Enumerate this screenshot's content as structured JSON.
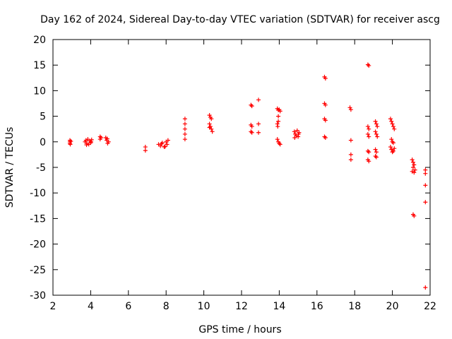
{
  "chart_data": {
    "type": "scatter",
    "title": "Day 162 of 2024, Sidereal Day-to-day VTEC variation (SDTVAR) for receiver ascg",
    "xlabel": "GPS time / hours",
    "ylabel": "SDTVAR / TECUs",
    "xlim": [
      2,
      22
    ],
    "ylim": [
      -30,
      20
    ],
    "xticks": [
      "2",
      "4",
      "6",
      "8",
      "10",
      "12",
      "14",
      "16",
      "18",
      "20",
      "22"
    ],
    "yticks": [
      "20",
      "15",
      "10",
      "5",
      "0",
      "-5",
      "-10",
      "-15",
      "-20",
      "-25",
      "-30"
    ],
    "marker": "+",
    "color": "#ff0000",
    "points": [
      [
        2.9,
        0.3
      ],
      [
        2.9,
        0.0
      ],
      [
        2.9,
        -0.3
      ],
      [
        2.95,
        0.1
      ],
      [
        2.92,
        -0.5
      ],
      [
        3.7,
        0.0
      ],
      [
        3.75,
        0.3
      ],
      [
        3.8,
        -0.3
      ],
      [
        3.85,
        0.5
      ],
      [
        3.9,
        -0.5
      ],
      [
        3.95,
        0.2
      ],
      [
        4.0,
        -0.2
      ],
      [
        4.05,
        0.4
      ],
      [
        3.78,
        -0.6
      ],
      [
        4.02,
        0.0
      ],
      [
        4.5,
        1.0
      ],
      [
        4.5,
        0.5
      ],
      [
        4.55,
        0.8
      ],
      [
        4.8,
        0.8
      ],
      [
        4.85,
        0.3
      ],
      [
        4.9,
        -0.3
      ],
      [
        4.95,
        0.0
      ],
      [
        4.88,
        0.6
      ],
      [
        6.9,
        -1.0
      ],
      [
        6.9,
        -1.7
      ],
      [
        7.6,
        -0.5
      ],
      [
        7.7,
        -0.8
      ],
      [
        7.8,
        -0.2
      ],
      [
        7.9,
        -1.0
      ],
      [
        8.0,
        0.0
      ],
      [
        8.05,
        -0.5
      ],
      [
        8.1,
        0.3
      ],
      [
        7.75,
        -0.4
      ],
      [
        7.95,
        -0.9
      ],
      [
        9.0,
        4.5
      ],
      [
        9.0,
        3.5
      ],
      [
        9.0,
        2.5
      ],
      [
        9.0,
        1.5
      ],
      [
        9.0,
        0.5
      ],
      [
        10.3,
        5.2
      ],
      [
        10.35,
        4.8
      ],
      [
        10.3,
        3.5
      ],
      [
        10.35,
        3.0
      ],
      [
        10.4,
        2.5
      ],
      [
        10.45,
        2.0
      ],
      [
        10.3,
        2.8
      ],
      [
        10.4,
        4.5
      ],
      [
        12.5,
        7.2
      ],
      [
        12.55,
        7.0
      ],
      [
        12.5,
        3.3
      ],
      [
        12.55,
        3.0
      ],
      [
        12.5,
        2.0
      ],
      [
        12.55,
        1.8
      ],
      [
        12.9,
        8.2
      ],
      [
        12.9,
        3.5
      ],
      [
        12.9,
        1.8
      ],
      [
        13.9,
        6.5
      ],
      [
        13.95,
        6.2
      ],
      [
        14.0,
        6.3
      ],
      [
        14.05,
        6.0
      ],
      [
        13.95,
        5.0
      ],
      [
        13.95,
        4.0
      ],
      [
        13.9,
        3.5
      ],
      [
        13.9,
        0.5
      ],
      [
        13.95,
        0.0
      ],
      [
        14.0,
        -0.3
      ],
      [
        14.05,
        -0.5
      ],
      [
        13.92,
        3.0
      ],
      [
        14.8,
        2.0
      ],
      [
        14.85,
        1.5
      ],
      [
        14.9,
        1.2
      ],
      [
        14.95,
        2.2
      ],
      [
        15.0,
        1.0
      ],
      [
        15.05,
        1.8
      ],
      [
        14.82,
        0.8
      ],
      [
        15.02,
        1.5
      ],
      [
        16.4,
        12.7
      ],
      [
        16.45,
        12.4
      ],
      [
        16.4,
        7.5
      ],
      [
        16.45,
        7.2
      ],
      [
        16.4,
        4.5
      ],
      [
        16.45,
        4.2
      ],
      [
        16.4,
        1.0
      ],
      [
        16.45,
        0.8
      ],
      [
        17.75,
        6.7
      ],
      [
        17.8,
        6.3
      ],
      [
        17.8,
        0.3
      ],
      [
        17.8,
        -2.5
      ],
      [
        17.8,
        -3.5
      ],
      [
        18.7,
        15.1
      ],
      [
        18.75,
        14.9
      ],
      [
        18.7,
        3.0
      ],
      [
        18.75,
        2.5
      ],
      [
        18.7,
        1.5
      ],
      [
        18.75,
        1.0
      ],
      [
        18.7,
        -1.8
      ],
      [
        18.75,
        -2.0
      ],
      [
        18.7,
        -3.5
      ],
      [
        18.75,
        -3.8
      ],
      [
        19.1,
        4.0
      ],
      [
        19.15,
        3.5
      ],
      [
        19.2,
        3.0
      ],
      [
        19.1,
        2.0
      ],
      [
        19.15,
        1.5
      ],
      [
        19.2,
        1.0
      ],
      [
        19.1,
        -1.5
      ],
      [
        19.15,
        -2.0
      ],
      [
        19.1,
        -2.8
      ],
      [
        19.15,
        -3.0
      ],
      [
        19.9,
        4.5
      ],
      [
        19.95,
        4.0
      ],
      [
        20.0,
        3.5
      ],
      [
        20.05,
        3.0
      ],
      [
        20.1,
        2.5
      ],
      [
        19.95,
        0.5
      ],
      [
        20.0,
        0.0
      ],
      [
        20.05,
        -0.2
      ],
      [
        19.9,
        -1.0
      ],
      [
        19.95,
        -1.5
      ],
      [
        20.0,
        -2.0
      ],
      [
        20.05,
        -1.8
      ],
      [
        20.1,
        -1.3
      ],
      [
        21.05,
        -3.5
      ],
      [
        21.1,
        -4.0
      ],
      [
        21.15,
        -4.5
      ],
      [
        21.1,
        -5.0
      ],
      [
        21.05,
        -5.8
      ],
      [
        21.15,
        -6.0
      ],
      [
        21.2,
        -5.5
      ],
      [
        21.1,
        -14.2
      ],
      [
        21.15,
        -14.5
      ],
      [
        21.75,
        -5.5
      ],
      [
        21.75,
        -6.2
      ],
      [
        21.75,
        -8.5
      ],
      [
        21.75,
        -11.8
      ],
      [
        21.75,
        -28.5
      ]
    ]
  }
}
